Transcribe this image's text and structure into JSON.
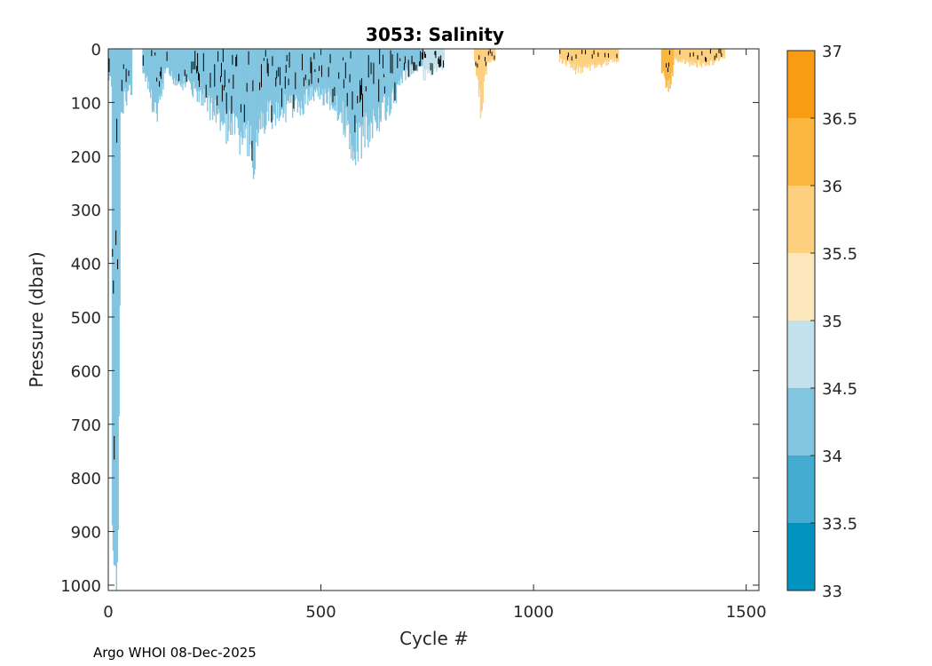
{
  "chart_data": {
    "type": "heatmap",
    "title": "3053:  Salinity",
    "xlabel": "Cycle #",
    "ylabel": "Pressure (dbar)",
    "xlim": [
      0,
      1530
    ],
    "ylim": [
      0,
      1010
    ],
    "y_reversed": true,
    "xticks": [
      0,
      500,
      1000,
      1500
    ],
    "xtick_labels": [
      "0",
      "500",
      "1000",
      "1500"
    ],
    "yticks": [
      0,
      100,
      200,
      300,
      400,
      500,
      600,
      700,
      800,
      900,
      1000
    ],
    "ytick_labels": [
      "0",
      "100",
      "200",
      "300",
      "400",
      "500",
      "600",
      "700",
      "800",
      "900",
      "1000"
    ],
    "colorbar": {
      "levels": [
        33,
        33.5,
        34,
        34.5,
        35,
        35.5,
        36,
        36.5,
        37
      ],
      "tick_labels": [
        "33",
        "33.5",
        "34",
        "34.5",
        "35",
        "35.5",
        "36",
        "36.5",
        "37"
      ],
      "colors": [
        "#0093bf",
        "#44abd1",
        "#82c5e0",
        "#c1e1ec",
        "#fde7bd",
        "#fcd07f",
        "#fbb640",
        "#f89d13"
      ]
    },
    "profile_regions": [
      {
        "cycle_start": 0,
        "cycle_end": 8,
        "depth_points": [
          [
            0,
            60
          ],
          [
            8,
            70
          ]
        ],
        "salinity": 34.3
      },
      {
        "cycle_start": 8,
        "cycle_end": 28,
        "depth_points": [
          [
            8,
            900
          ],
          [
            14,
            980
          ],
          [
            18,
            995
          ],
          [
            22,
            900
          ],
          [
            25,
            600
          ],
          [
            28,
            250
          ]
        ],
        "salinity": 34.3
      },
      {
        "cycle_start": 28,
        "cycle_end": 55,
        "depth_points": [
          [
            28,
            150
          ],
          [
            35,
            100
          ],
          [
            45,
            80
          ],
          [
            55,
            70
          ]
        ],
        "salinity": 34.3
      },
      {
        "cycle_start": 80,
        "cycle_end": 130,
        "depth_points": [
          [
            80,
            40
          ],
          [
            95,
            80
          ],
          [
            110,
            120
          ],
          [
            120,
            110
          ],
          [
            130,
            70
          ]
        ],
        "salinity": 34.3
      },
      {
        "cycle_start": 130,
        "cycle_end": 240,
        "depth_points": [
          [
            130,
            40
          ],
          [
            160,
            60
          ],
          [
            190,
            70
          ],
          [
            220,
            90
          ],
          [
            240,
            110
          ]
        ],
        "salinity": 34.3
      },
      {
        "cycle_start": 240,
        "cycle_end": 360,
        "depth_points": [
          [
            240,
            110
          ],
          [
            270,
            140
          ],
          [
            300,
            160
          ],
          [
            330,
            180
          ],
          [
            340,
            200
          ],
          [
            360,
            150
          ]
        ],
        "salinity": 34.3
      },
      {
        "cycle_start": 360,
        "cycle_end": 500,
        "depth_points": [
          [
            360,
            140
          ],
          [
            400,
            110
          ],
          [
            440,
            110
          ],
          [
            470,
            90
          ],
          [
            500,
            80
          ]
        ],
        "salinity": 34.3
      },
      {
        "cycle_start": 500,
        "cycle_end": 580,
        "depth_points": [
          [
            500,
            90
          ],
          [
            530,
            100
          ],
          [
            560,
            140
          ],
          [
            575,
            220
          ],
          [
            580,
            200
          ]
        ],
        "salinity": 34.3
      },
      {
        "cycle_start": 580,
        "cycle_end": 680,
        "depth_points": [
          [
            580,
            180
          ],
          [
            610,
            150
          ],
          [
            640,
            120
          ],
          [
            660,
            100
          ],
          [
            680,
            80
          ]
        ],
        "salinity": 34.3
      },
      {
        "cycle_start": 680,
        "cycle_end": 740,
        "depth_points": [
          [
            680,
            60
          ],
          [
            710,
            40
          ],
          [
            740,
            30
          ]
        ],
        "salinity": 34.3
      },
      {
        "cycle_start": 740,
        "cycle_end": 790,
        "depth_points": [
          [
            740,
            50
          ],
          [
            760,
            40
          ],
          [
            790,
            30
          ]
        ],
        "salinity": 34.8
      },
      {
        "cycle_start": 860,
        "cycle_end": 910,
        "depth_points": [
          [
            860,
            20
          ],
          [
            875,
            110
          ],
          [
            890,
            30
          ],
          [
            910,
            20
          ]
        ],
        "salinity": 35.7
      },
      {
        "cycle_start": 1060,
        "cycle_end": 1200,
        "depth_points": [
          [
            1060,
            20
          ],
          [
            1100,
            40
          ],
          [
            1150,
            30
          ],
          [
            1200,
            20
          ]
        ],
        "salinity": 35.7
      },
      {
        "cycle_start": 1300,
        "cycle_end": 1330,
        "depth_points": [
          [
            1300,
            40
          ],
          [
            1310,
            75
          ],
          [
            1320,
            60
          ],
          [
            1330,
            30
          ]
        ],
        "salinity": 36.2
      },
      {
        "cycle_start": 1330,
        "cycle_end": 1450,
        "depth_points": [
          [
            1330,
            20
          ],
          [
            1380,
            30
          ],
          [
            1420,
            25
          ],
          [
            1450,
            15
          ]
        ],
        "salinity": 35.7
      }
    ],
    "contour_level": 34.5
  },
  "footer": {
    "credit": "Argo WHOI 08-Dec-2025"
  }
}
